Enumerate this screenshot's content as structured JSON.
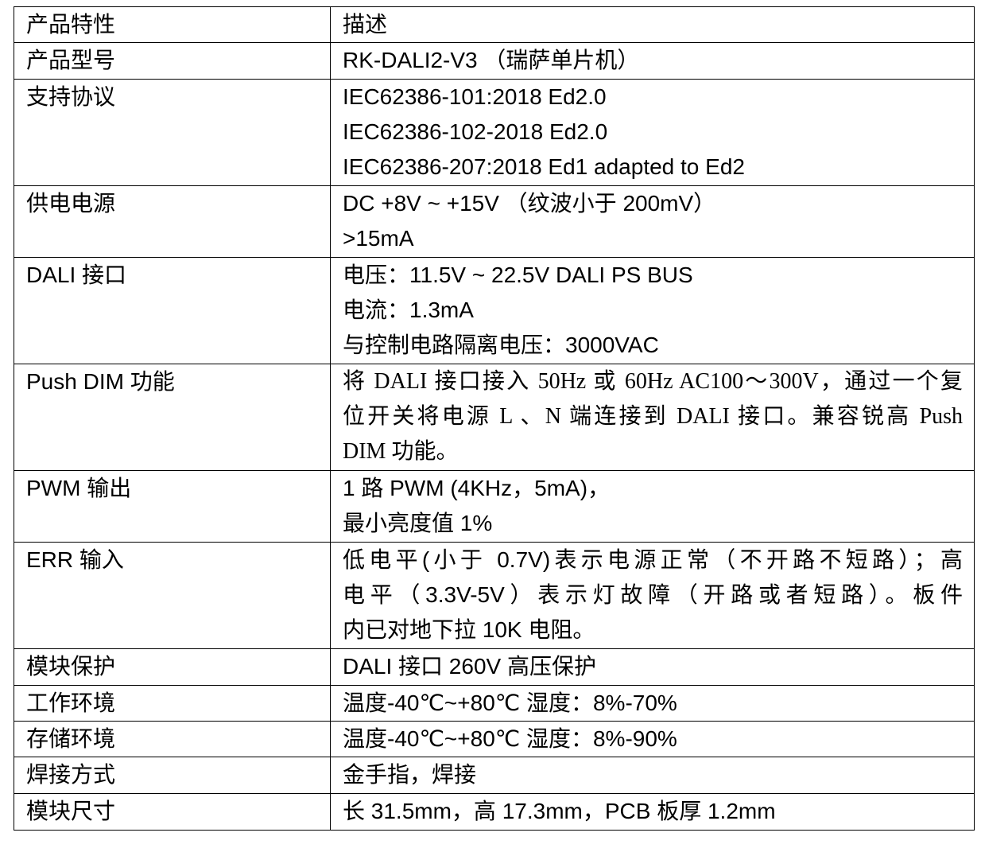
{
  "table": {
    "header": [
      "产品特性",
      "描述"
    ],
    "rows": [
      {
        "feature": "产品型号",
        "lines": [
          "RK-DALI2-V3 （瑞萨单片机）"
        ]
      },
      {
        "feature": "支持协议",
        "lines": [
          "IEC62386-101:2018 Ed2.0",
          "IEC62386-102-2018 Ed2.0",
          "IEC62386-207:2018 Ed1 adapted to Ed2"
        ]
      },
      {
        "feature": "供电电源",
        "lines": [
          "DC +8V ~ +15V （纹波小于 200mV）",
          ">15mA"
        ]
      },
      {
        "feature": "DALI 接口",
        "lines": [
          "电压：11.5V ~ 22.5V DALI PS BUS",
          "电流：1.3mA",
          "与控制电路隔离电压：3000VAC"
        ]
      },
      {
        "feature": "Push DIM 功能",
        "lines": [
          "将 DALI 接口接入 50Hz 或 60Hz AC100～300V，通过一个复",
          "位开关将电源 L 、N 端连接到 DALI 接口。兼容锐高 Push",
          "DIM 功能。"
        ]
      },
      {
        "feature": "PWM 输出",
        "lines": [
          "1 路 PWM (4KHz，5mA)，",
          "最小亮度值 1%"
        ]
      },
      {
        "feature": "ERR 输入",
        "lines": [
          "低电平(小于 0.7V)表示电源正常（不开路不短路）；高",
          "电平（3.3V-5V）表示灯故障（开路或者短路）。板件",
          "内已对地下拉 10K 电阻。"
        ]
      },
      {
        "feature": "模块保护",
        "lines": [
          "DALI 接口 260V 高压保护"
        ]
      },
      {
        "feature": "工作环境",
        "lines": [
          "温度-40℃~+80℃ 湿度：8%-70%"
        ]
      },
      {
        "feature": "存储环境",
        "lines": [
          "温度-40℃~+80℃ 湿度：8%-90%"
        ]
      },
      {
        "feature": "焊接方式",
        "lines": [
          "金手指，焊接"
        ]
      },
      {
        "feature": "模块尺寸",
        "lines": [
          "长 31.5mm，高 17.3mm，PCB 板厚 1.2mm"
        ]
      }
    ]
  }
}
